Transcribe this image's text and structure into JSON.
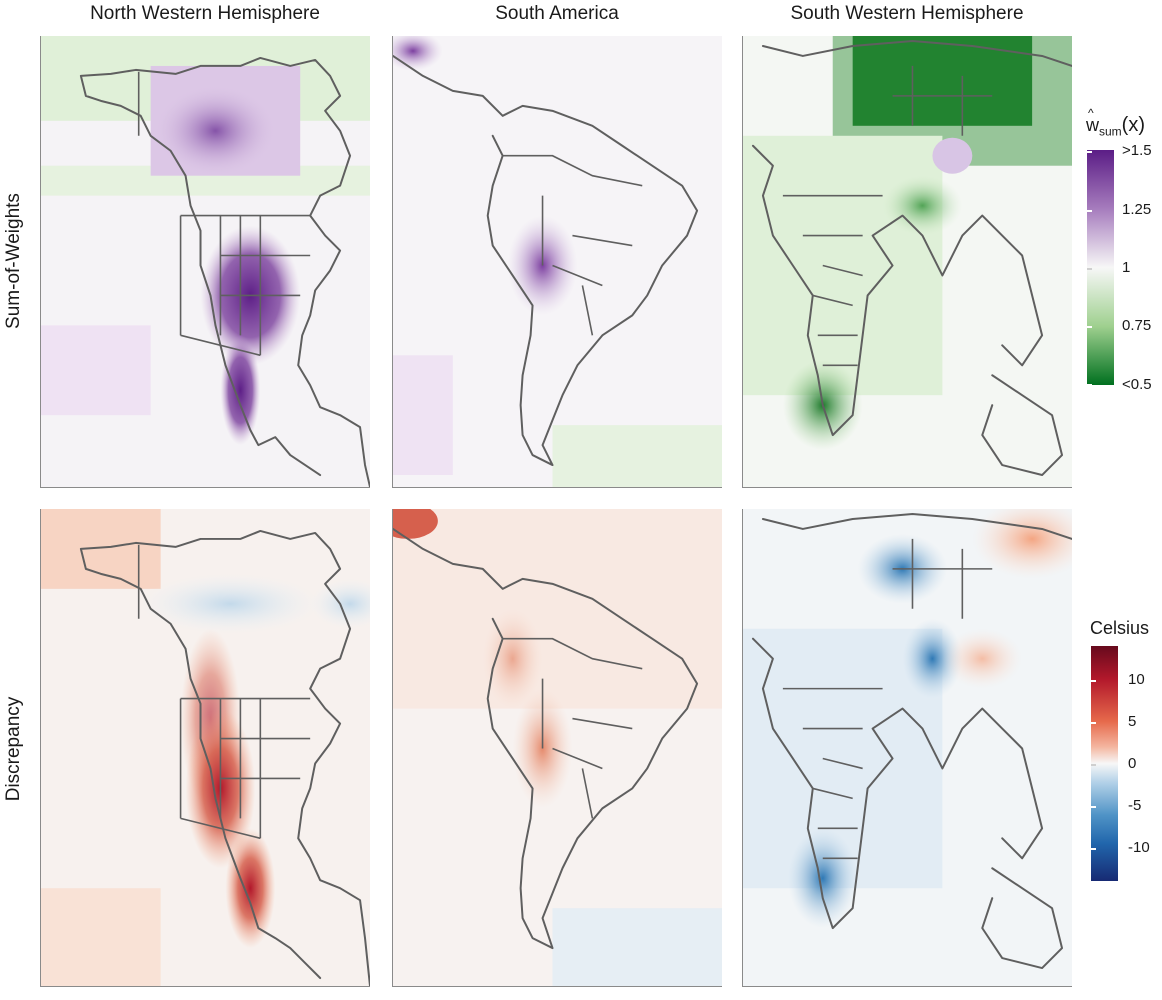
{
  "columns": [
    "North Western Hemisphere",
    "South America",
    "South Western Hemisphere"
  ],
  "rows": [
    "Sum-of-Weights",
    "Discrepancy"
  ],
  "legends": {
    "weights": {
      "title_main": "w",
      "title_hat": "^",
      "title_sub": "sum",
      "title_arg": "(x)",
      "ticks": [
        ">1.5",
        "1.25",
        "1",
        "0.75",
        "<0.5"
      ],
      "colors": [
        "#5b1d86",
        "#a67cbd",
        "#f7f7f7",
        "#9fd08f",
        "#00701f"
      ]
    },
    "discrepancy": {
      "title": "Celsius",
      "ticks": [
        "10",
        "5",
        "0",
        "-5",
        "-10"
      ],
      "colors": [
        "#9b0d1f",
        "#e6694b",
        "#f7f7f7",
        "#4f93c6",
        "#172a73"
      ]
    }
  }
}
